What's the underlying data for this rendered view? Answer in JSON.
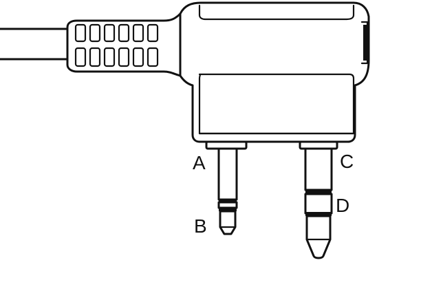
{
  "labels": {
    "a": "A",
    "b": "B",
    "c": "C",
    "d": "D"
  },
  "colors": {
    "line": "#111111",
    "background": "#ffffff"
  }
}
